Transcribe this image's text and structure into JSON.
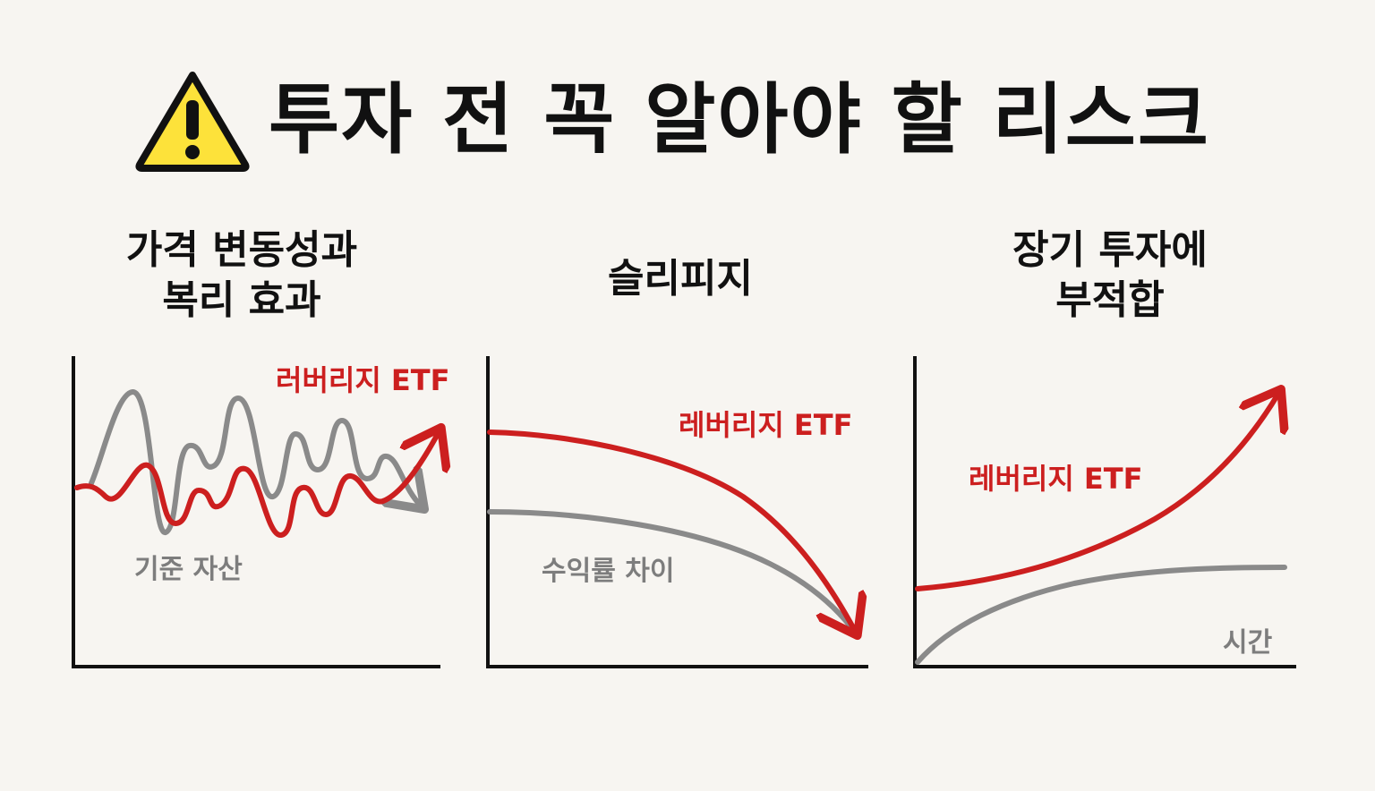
{
  "header": {
    "title": "투자 전 꼭 알아야 할 리스크",
    "icon": "warning-icon"
  },
  "colors": {
    "background": "#f7f5f1",
    "leveraged": "#cc1f1f",
    "base": "#8a8a8a",
    "warning_fill": "#fde23a",
    "axis": "#111111"
  },
  "panels": [
    {
      "title_line1": "가격 변동성과",
      "title_line2": "복리 효과",
      "red_label": "러버리지 ETF",
      "gray_label": "기준 자산"
    },
    {
      "title_line1": "슬리피지",
      "red_label": "레버리지 ETF",
      "gray_label": "수익률 차이"
    },
    {
      "title_line1": "장기 투자에",
      "title_line2": "부적합",
      "red_label": "레버리지 ETF",
      "axis_label": "시간"
    }
  ]
}
